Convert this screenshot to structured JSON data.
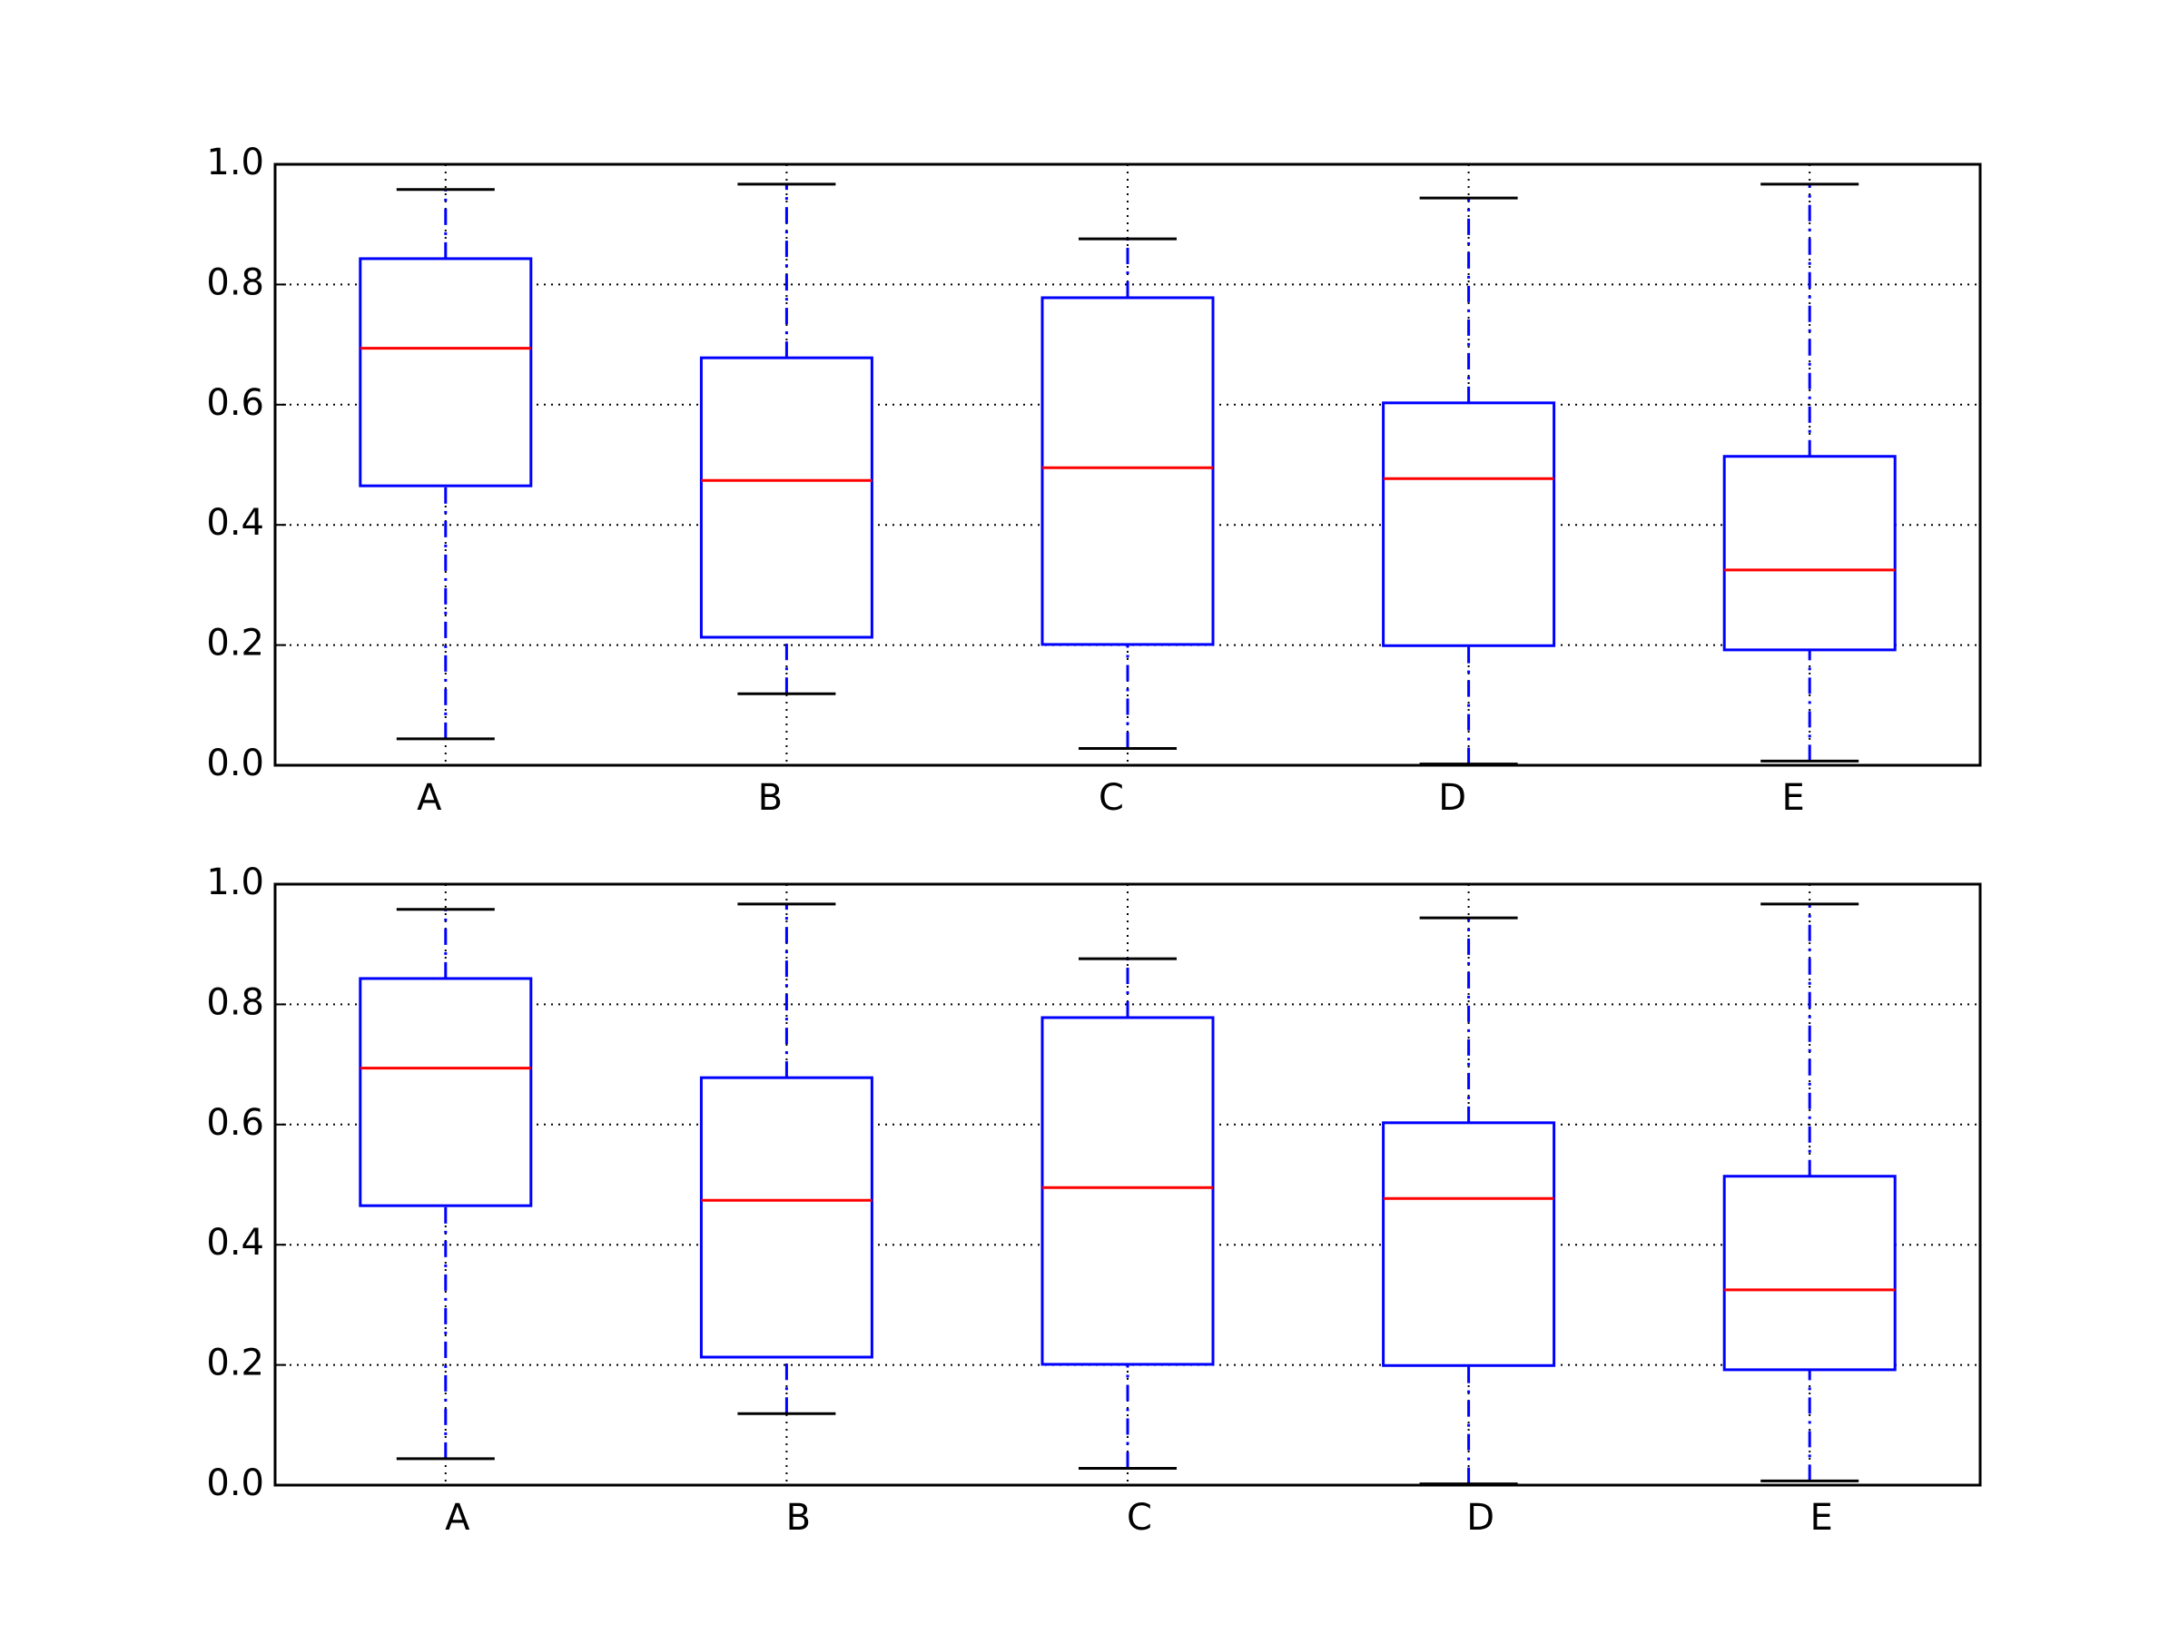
{
  "chart_data": [
    {
      "type": "box",
      "categories": [
        "A",
        "B",
        "C",
        "D",
        "E"
      ],
      "whislo": [
        0.044,
        0.119,
        0.028,
        0.002,
        0.007
      ],
      "q1": [
        0.465,
        0.213,
        0.201,
        0.199,
        0.192
      ],
      "med": [
        0.694,
        0.474,
        0.495,
        0.477,
        0.325
      ],
      "q3": [
        0.843,
        0.678,
        0.778,
        0.603,
        0.514
      ],
      "whishi": [
        0.958,
        0.967,
        0.876,
        0.944,
        0.967
      ],
      "box_color": "#0000ff",
      "median_color": "#ff0000",
      "cap_color": "#000000",
      "ylim": [
        0,
        1
      ],
      "yticks": [
        {
          "value": 0,
          "label": "0.0"
        },
        {
          "value": 0.2,
          "label": "0.2"
        },
        {
          "value": 0.4,
          "label": "0.4"
        },
        {
          "value": 0.6,
          "label": "0.6"
        },
        {
          "value": 0.8,
          "label": "0.8"
        },
        {
          "value": 1,
          "label": "1.0"
        }
      ],
      "grid": true
    },
    {
      "type": "box",
      "categories": [
        "A",
        "B",
        "C",
        "D",
        "E"
      ],
      "whislo": [
        0.044,
        0.119,
        0.028,
        0.002,
        0.007
      ],
      "q1": [
        0.465,
        0.213,
        0.201,
        0.199,
        0.192
      ],
      "med": [
        0.694,
        0.474,
        0.495,
        0.477,
        0.325
      ],
      "q3": [
        0.843,
        0.678,
        0.778,
        0.603,
        0.514
      ],
      "whishi": [
        0.958,
        0.967,
        0.876,
        0.944,
        0.967
      ],
      "box_color": "#0000ff",
      "median_color": "#ff0000",
      "cap_color": "#000000",
      "ylim": [
        0,
        1
      ],
      "yticks": [
        {
          "value": 0,
          "label": "0.0"
        },
        {
          "value": 0.2,
          "label": "0.2"
        },
        {
          "value": 0.4,
          "label": "0.4"
        },
        {
          "value": 0.6,
          "label": "0.6"
        },
        {
          "value": 0.8,
          "label": "0.8"
        },
        {
          "value": 1,
          "label": "1.0"
        }
      ],
      "grid": true
    }
  ]
}
